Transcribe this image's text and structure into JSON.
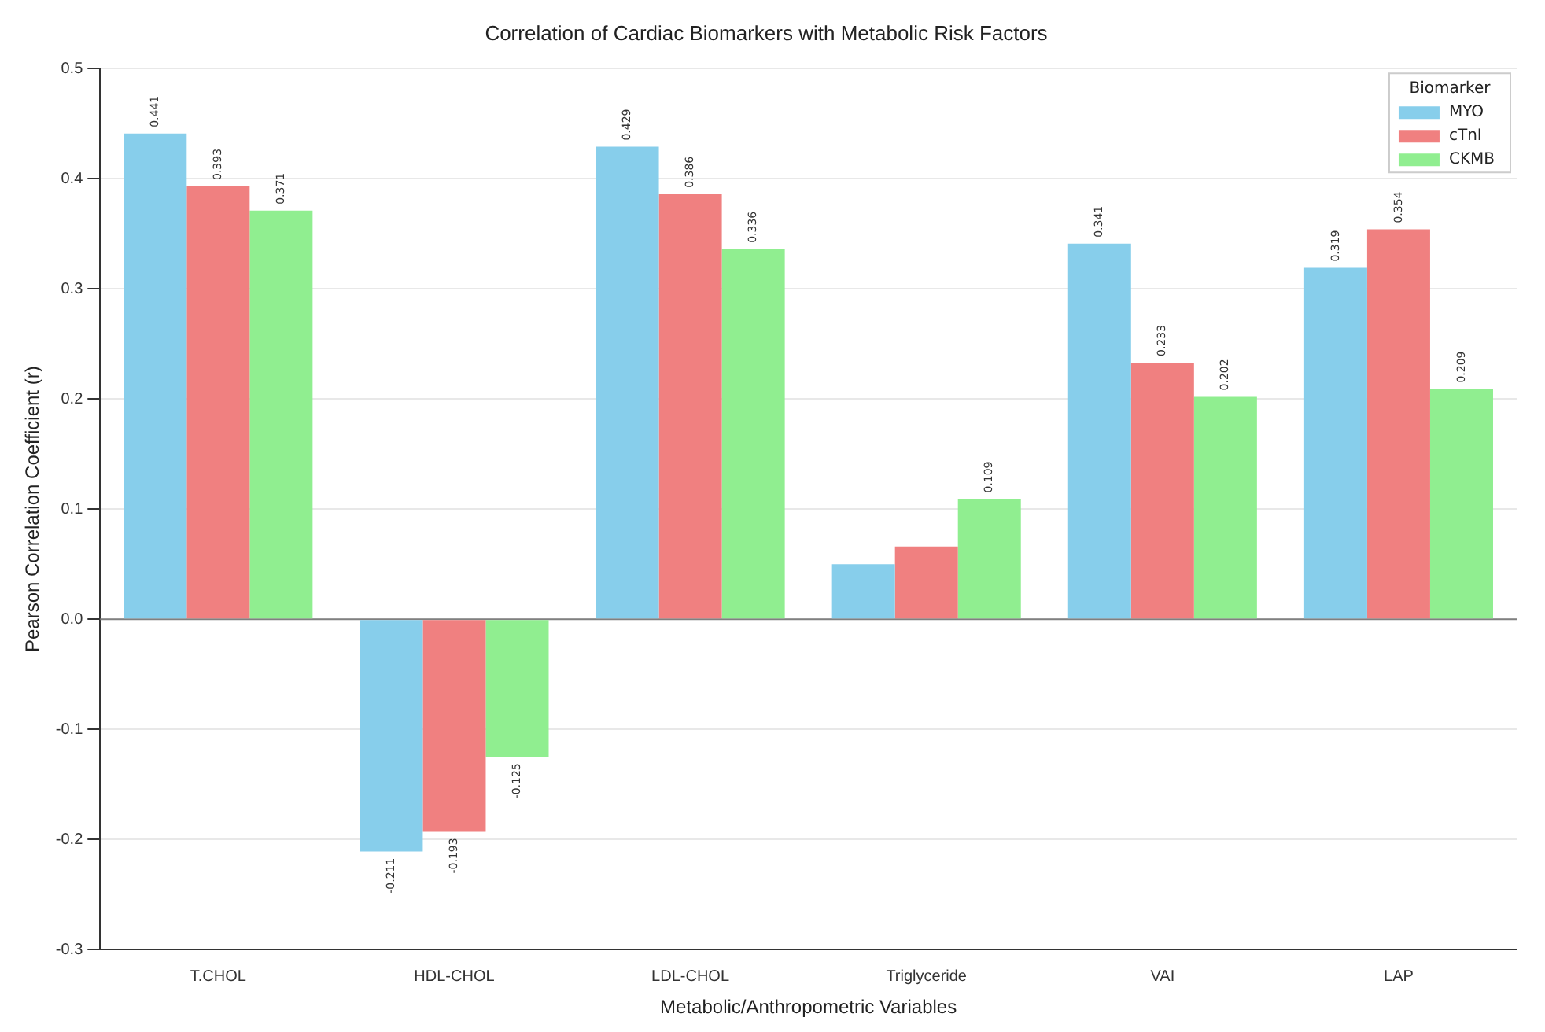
{
  "chart_data": {
    "type": "bar",
    "title": "Correlation of Cardiac Biomarkers with Metabolic Risk Factors",
    "xlabel": "Metabolic/Anthropometric Variables",
    "ylabel": "Pearson Correlation Coefficient (r)",
    "legend_title": "Biomarker",
    "categories": [
      "T.CHOL",
      "HDL-CHOL",
      "LDL-CHOL",
      "Triglyceride",
      "VAI",
      "LAP"
    ],
    "series": [
      {
        "name": "MYO",
        "color": "#87ceeb",
        "values": [
          0.441,
          -0.211,
          0.429,
          0.05,
          0.341,
          0.319
        ],
        "value_labels": [
          "0.441",
          "-0.211",
          "0.429",
          null,
          "0.341",
          "0.319"
        ]
      },
      {
        "name": "cTnI",
        "color": "#f08080",
        "values": [
          0.393,
          -0.193,
          0.386,
          0.066,
          0.233,
          0.354
        ],
        "value_labels": [
          "0.393",
          "-0.193",
          "0.386",
          null,
          "0.233",
          "0.354"
        ]
      },
      {
        "name": "CKMB",
        "color": "#90ee90",
        "values": [
          0.371,
          -0.125,
          0.336,
          0.109,
          0.202,
          0.209
        ],
        "value_labels": [
          "0.371",
          "-0.125",
          "0.336",
          "0.109",
          "0.202",
          "0.209"
        ]
      }
    ],
    "ylim": [
      -0.3,
      0.5
    ],
    "yticks": [
      -0.3,
      -0.2,
      -0.1,
      {
        "value": 0,
        "label": "0.0"
      },
      0.1,
      0.2,
      0.3,
      0.4,
      0.5
    ],
    "ref_lines": [
      {
        "axis": "y",
        "value": 0,
        "label": null,
        "color": "#808080"
      }
    ],
    "grid": "y",
    "legend": "top right"
  }
}
